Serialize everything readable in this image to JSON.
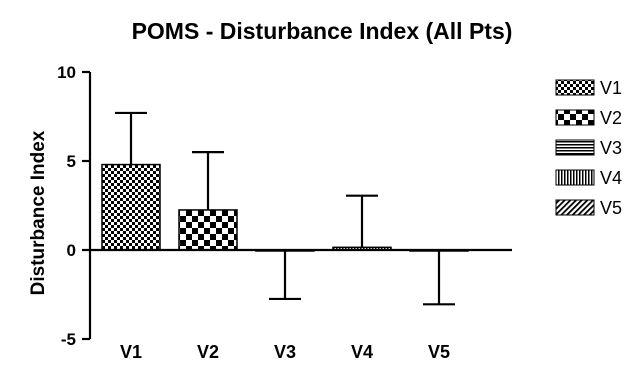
{
  "chart_data": {
    "type": "bar",
    "title": "POMS - Disturbance Index (All Pts)",
    "xlabel": "",
    "ylabel": "Disturbance Index",
    "ylim": [
      -5,
      10
    ],
    "yticks": [
      -5,
      0,
      5,
      10
    ],
    "categories": [
      "V1",
      "V2",
      "V3",
      "V4",
      "V5"
    ],
    "values": [
      4.8,
      2.25,
      0.0,
      0.15,
      -0.05
    ],
    "error_bars": [
      {
        "direction": "up",
        "extent": 2.9
      },
      {
        "direction": "up",
        "extent": 3.25
      },
      {
        "direction": "down",
        "extent": 2.75
      },
      {
        "direction": "up",
        "extent": 2.9
      },
      {
        "direction": "down",
        "extent": 3.0
      }
    ],
    "patterns": [
      "small-checker",
      "large-checker",
      "horizontal-lines",
      "vertical-lines",
      "diagonal-lines"
    ],
    "legend": {
      "position": "right",
      "entries": [
        "V1",
        "V2",
        "V3",
        "V4",
        "V5"
      ]
    },
    "grid": false,
    "bar_color": "#000000"
  }
}
